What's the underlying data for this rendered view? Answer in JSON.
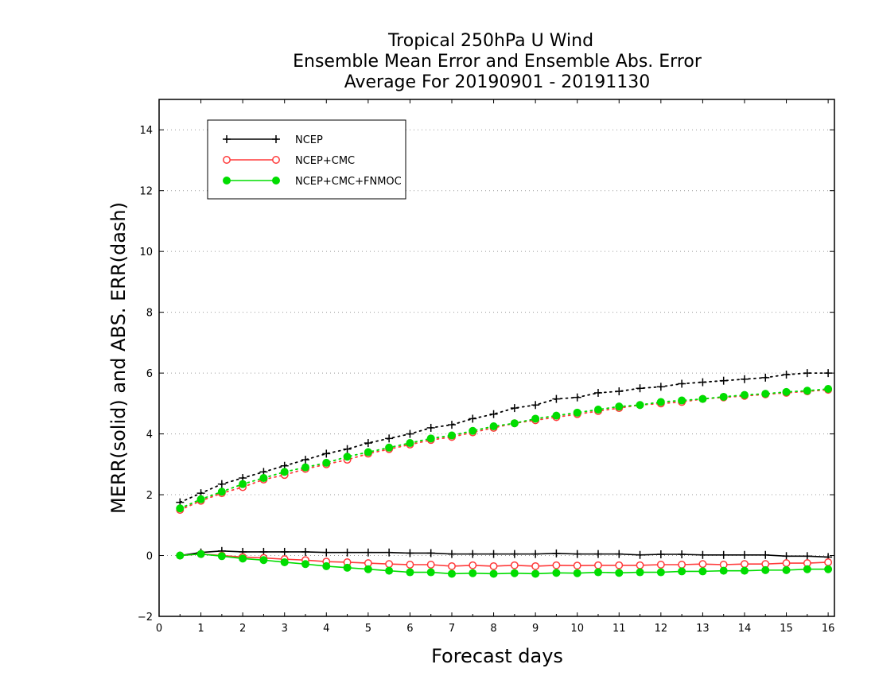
{
  "chart_data": {
    "type": "line",
    "title_lines": [
      "Tropical 250hPa U Wind",
      "Ensemble Mean Error and Ensemble Abs. Error",
      "Average For 20190901 - 20191130"
    ],
    "xlabel": "Forecast days",
    "ylabel": "MERR(solid) and ABS. ERR(dash)",
    "xlim": [
      0,
      16.15
    ],
    "ylim": [
      -2,
      15
    ],
    "xticks": [
      0,
      1,
      2,
      3,
      4,
      5,
      6,
      7,
      8,
      9,
      10,
      11,
      12,
      13,
      14,
      15,
      16
    ],
    "yticks": [
      -2,
      0,
      2,
      4,
      6,
      8,
      10,
      12,
      14
    ],
    "grid": "horizontal-dotted",
    "legend_position": "top-left",
    "x": [
      0.5,
      1,
      1.5,
      2,
      2.5,
      3,
      3.5,
      4,
      4.5,
      5,
      5.5,
      6,
      6.5,
      7,
      7.5,
      8,
      8.5,
      9,
      9.5,
      10,
      10.5,
      11,
      11.5,
      12,
      12.5,
      13,
      13.5,
      14,
      14.5,
      15,
      15.5,
      16
    ],
    "series": [
      {
        "name": "NCEP",
        "color": "#000000",
        "marker": "plus",
        "mean_error": [
          0.0,
          0.1,
          0.15,
          0.12,
          0.12,
          0.12,
          0.12,
          0.1,
          0.1,
          0.1,
          0.1,
          0.08,
          0.08,
          0.05,
          0.05,
          0.05,
          0.05,
          0.05,
          0.07,
          0.05,
          0.05,
          0.05,
          0.02,
          0.04,
          0.04,
          0.02,
          0.02,
          0.02,
          0.02,
          -0.02,
          -0.02,
          -0.05
        ],
        "abs_error": [
          1.75,
          2.05,
          2.35,
          2.55,
          2.75,
          2.95,
          3.15,
          3.35,
          3.5,
          3.7,
          3.85,
          4.0,
          4.2,
          4.3,
          4.5,
          4.65,
          4.85,
          4.95,
          5.15,
          5.2,
          5.35,
          5.4,
          5.5,
          5.55,
          5.65,
          5.7,
          5.75,
          5.8,
          5.85,
          5.95,
          6.0,
          6.0
        ]
      },
      {
        "name": "NCEP+CMC",
        "color": "#ff3a3a",
        "marker": "open-circle",
        "mean_error": [
          0.0,
          0.05,
          0.0,
          -0.05,
          -0.08,
          -0.12,
          -0.15,
          -0.2,
          -0.22,
          -0.25,
          -0.28,
          -0.3,
          -0.3,
          -0.35,
          -0.32,
          -0.35,
          -0.32,
          -0.35,
          -0.32,
          -0.33,
          -0.32,
          -0.32,
          -0.32,
          -0.3,
          -0.3,
          -0.28,
          -0.3,
          -0.28,
          -0.28,
          -0.25,
          -0.25,
          -0.22
        ],
        "abs_error": [
          1.5,
          1.8,
          2.05,
          2.25,
          2.5,
          2.65,
          2.85,
          3.0,
          3.15,
          3.35,
          3.5,
          3.65,
          3.8,
          3.9,
          4.05,
          4.2,
          4.35,
          4.45,
          4.55,
          4.65,
          4.75,
          4.85,
          4.95,
          5.0,
          5.05,
          5.15,
          5.2,
          5.25,
          5.3,
          5.35,
          5.4,
          5.45
        ]
      },
      {
        "name": "NCEP+CMC+FNMOC",
        "color": "#00dd00",
        "marker": "filled-circle",
        "mean_error": [
          0.0,
          0.05,
          -0.02,
          -0.1,
          -0.15,
          -0.22,
          -0.28,
          -0.35,
          -0.4,
          -0.45,
          -0.5,
          -0.55,
          -0.55,
          -0.6,
          -0.58,
          -0.6,
          -0.58,
          -0.6,
          -0.57,
          -0.58,
          -0.55,
          -0.57,
          -0.55,
          -0.55,
          -0.52,
          -0.52,
          -0.5,
          -0.5,
          -0.48,
          -0.48,
          -0.45,
          -0.45
        ],
        "abs_error": [
          1.55,
          1.85,
          2.1,
          2.35,
          2.55,
          2.75,
          2.9,
          3.05,
          3.25,
          3.4,
          3.55,
          3.7,
          3.85,
          3.95,
          4.1,
          4.25,
          4.35,
          4.5,
          4.6,
          4.7,
          4.8,
          4.9,
          4.95,
          5.05,
          5.1,
          5.15,
          5.22,
          5.28,
          5.32,
          5.38,
          5.42,
          5.48
        ]
      }
    ]
  }
}
